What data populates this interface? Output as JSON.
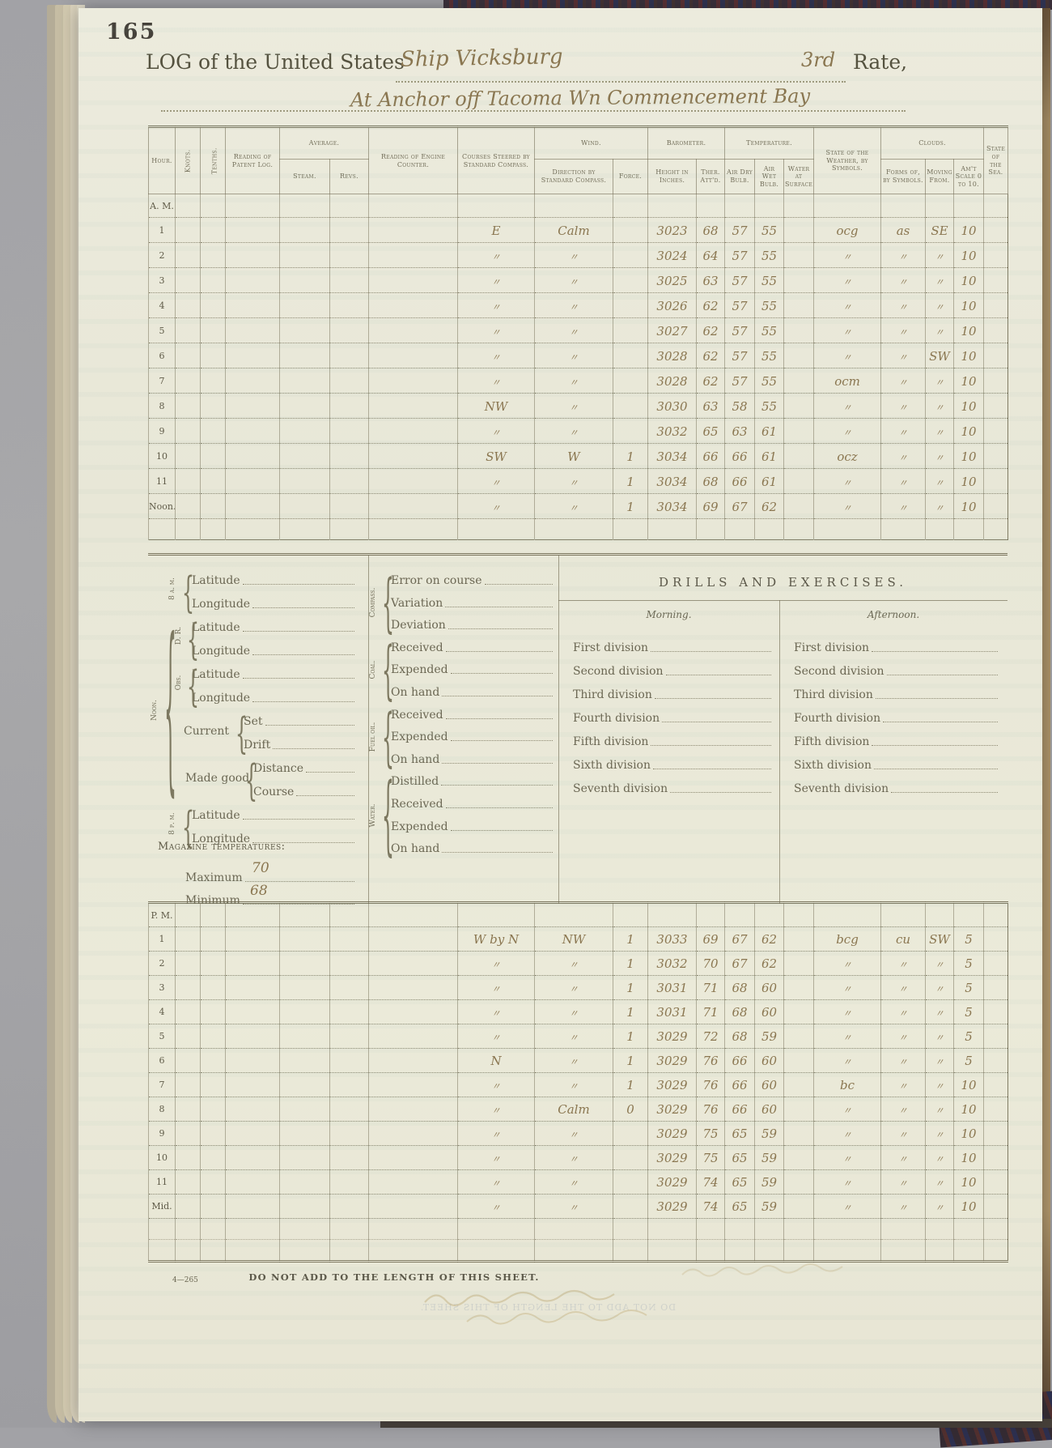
{
  "page": {
    "number": "165",
    "title_prefix": "LOG of the United States",
    "ship_name": "Ship Vicksburg",
    "rate_value": "3rd",
    "rate_label": "Rate,",
    "location": "At Anchor off Tacoma Wn  Commencement Bay"
  },
  "table": {
    "columns": {
      "hour": "Hour.",
      "knots": "Knots.",
      "tenths": "Tenths.",
      "patent_log": "Reading of Patent Log.",
      "average": "Average.",
      "steam": "Steam.",
      "revs": "Revs.",
      "engine_counter": "Reading of Engine Counter.",
      "courses": "Courses Steered by Standard Compass.",
      "wind": "Wind.",
      "wind_direction": "Direction by Standard Compass.",
      "force": "Force.",
      "barometer": "Barometer.",
      "height": "Height in Inches.",
      "ther": "Ther. Att'd.",
      "temperature": "Temperature.",
      "air_dry": "Air Dry Bulb.",
      "air_wet": "Air Wet Bulb.",
      "water_surface": "Water at Surface.",
      "weather": "State of the Weather, by Symbols.",
      "clouds": "Clouds.",
      "forms": "Forms of, by Symbols.",
      "moving": "Moving From.",
      "amount": "Am't Scale 0 to 10.",
      "sea": "State of the Sea."
    },
    "am": {
      "label": "A. M.",
      "rows": [
        [
          "1",
          "E",
          "Calm",
          "",
          "3023",
          "68",
          "57",
          "55",
          "ocg",
          "as",
          "SE",
          "10"
        ],
        [
          "2",
          "〃",
          "〃",
          "",
          "3024",
          "64",
          "57",
          "55",
          "〃",
          "〃",
          "〃",
          "10"
        ],
        [
          "3",
          "〃",
          "〃",
          "",
          "3025",
          "63",
          "57",
          "55",
          "〃",
          "〃",
          "〃",
          "10"
        ],
        [
          "4",
          "〃",
          "〃",
          "",
          "3026",
          "62",
          "57",
          "55",
          "〃",
          "〃",
          "〃",
          "10"
        ],
        [
          "5",
          "〃",
          "〃",
          "",
          "3027",
          "62",
          "57",
          "55",
          "〃",
          "〃",
          "〃",
          "10"
        ],
        [
          "6",
          "〃",
          "〃",
          "",
          "3028",
          "62",
          "57",
          "55",
          "〃",
          "〃",
          "SW",
          "10"
        ],
        [
          "7",
          "〃",
          "〃",
          "",
          "3028",
          "62",
          "57",
          "55",
          "ocm",
          "〃",
          "〃",
          "10"
        ],
        [
          "8",
          "NW",
          "〃",
          "",
          "3030",
          "63",
          "58",
          "55",
          "〃",
          "〃",
          "〃",
          "10"
        ],
        [
          "9",
          "〃",
          "〃",
          "",
          "3032",
          "65",
          "63",
          "61",
          "〃",
          "〃",
          "〃",
          "10"
        ],
        [
          "10",
          "SW",
          "W",
          "1",
          "3034",
          "66",
          "66",
          "61",
          "ocz",
          "〃",
          "〃",
          "10"
        ],
        [
          "11",
          "〃",
          "〃",
          "1",
          "3034",
          "68",
          "66",
          "61",
          "〃",
          "〃",
          "〃",
          "10"
        ],
        [
          "Noon.",
          "〃",
          "〃",
          "1",
          "3034",
          "69",
          "67",
          "62",
          "〃",
          "〃",
          "〃",
          "10"
        ]
      ]
    },
    "pm": {
      "label": "P. M.",
      "rows": [
        [
          "1",
          "W by N",
          "NW",
          "1",
          "3033",
          "69",
          "67",
          "62",
          "bcg",
          "cu",
          "SW",
          "5"
        ],
        [
          "2",
          "〃",
          "〃",
          "1",
          "3032",
          "70",
          "67",
          "62",
          "〃",
          "〃",
          "〃",
          "5"
        ],
        [
          "3",
          "〃",
          "〃",
          "1",
          "3031",
          "71",
          "68",
          "60",
          "〃",
          "〃",
          "〃",
          "5"
        ],
        [
          "4",
          "〃",
          "〃",
          "1",
          "3031",
          "71",
          "68",
          "60",
          "〃",
          "〃",
          "〃",
          "5"
        ],
        [
          "5",
          "〃",
          "〃",
          "1",
          "3029",
          "72",
          "68",
          "59",
          "〃",
          "〃",
          "〃",
          "5"
        ],
        [
          "6",
          "N",
          "〃",
          "1",
          "3029",
          "76",
          "66",
          "60",
          "〃",
          "〃",
          "〃",
          "5"
        ],
        [
          "7",
          "〃",
          "〃",
          "1",
          "3029",
          "76",
          "66",
          "60",
          "bc",
          "〃",
          "〃",
          "10"
        ],
        [
          "8",
          "〃",
          "Calm",
          "0",
          "3029",
          "76",
          "66",
          "60",
          "〃",
          "〃",
          "〃",
          "10"
        ],
        [
          "9",
          "〃",
          "〃",
          "",
          "3029",
          "75",
          "65",
          "59",
          "〃",
          "〃",
          "〃",
          "10"
        ],
        [
          "10",
          "〃",
          "〃",
          "",
          "3029",
          "75",
          "65",
          "59",
          "〃",
          "〃",
          "〃",
          "10"
        ],
        [
          "11",
          "〃",
          "〃",
          "",
          "3029",
          "74",
          "65",
          "59",
          "〃",
          "〃",
          "〃",
          "10"
        ],
        [
          "Mid.",
          "〃",
          "〃",
          "",
          "3029",
          "74",
          "65",
          "59",
          "〃",
          "〃",
          "〃",
          "10"
        ]
      ]
    }
  },
  "noon_obs": {
    "g_8am": {
      "label": "8 a. m.",
      "items": [
        "Latitude",
        "Longitude"
      ]
    },
    "noon_label": "Noon.",
    "g_dr": {
      "label": "D. R.",
      "items": [
        "Latitude",
        "Longitude"
      ]
    },
    "g_obs": {
      "label": "Obs.",
      "items": [
        "Latitude",
        "Longitude"
      ]
    },
    "g_current": {
      "label": "Current",
      "items": [
        "Set",
        "Drift"
      ]
    },
    "g_made": {
      "label": "Made good",
      "items": [
        "Distance",
        "Course"
      ]
    },
    "g_8pm": {
      "label": "8 p. m.",
      "items": [
        "Latitude",
        "Longitude"
      ]
    }
  },
  "supplies": {
    "compass": {
      "label": "Compass.",
      "items": [
        "Error on course",
        "Variation",
        "Deviation"
      ]
    },
    "coal": {
      "label": "Coal.",
      "items": [
        "Received",
        "Expended",
        "On hand"
      ]
    },
    "fuel": {
      "label": "Fuel oil.",
      "items": [
        "Received",
        "Expended",
        "On hand"
      ]
    },
    "water": {
      "label": "Water.",
      "items": [
        "Distilled",
        "Received",
        "Expended",
        "On hand"
      ]
    }
  },
  "drills": {
    "title": "DRILLS AND EXERCISES.",
    "morning": "Morning.",
    "afternoon": "Afternoon.",
    "divisions": [
      "First division",
      "Second division",
      "Third division",
      "Fourth division",
      "Fifth division",
      "Sixth division",
      "Seventh division"
    ]
  },
  "magazine": {
    "title": "Magazine temperatures:",
    "maximum_label": "Maximum",
    "maximum_value": "70",
    "minimum_label": "Minimum",
    "minimum_value": "68"
  },
  "footer": {
    "form_number": "4—265",
    "note": "DO NOT ADD TO THE LENGTH OF THIS SHEET."
  }
}
